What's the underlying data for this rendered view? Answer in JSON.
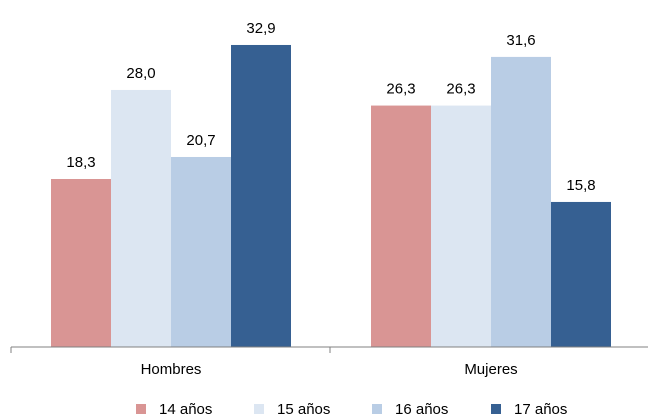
{
  "chart_data": {
    "type": "bar",
    "categories": [
      "Hombres",
      "Mujeres"
    ],
    "series": [
      {
        "name": "14 años",
        "values": [
          18.3,
          26.3
        ],
        "labels": [
          "18,3",
          "26,3"
        ],
        "color": "#d99594"
      },
      {
        "name": "15 años",
        "values": [
          28.0,
          26.3
        ],
        "labels": [
          "28,0",
          "26,3"
        ],
        "color": "#dce6f2"
      },
      {
        "name": "16 años",
        "values": [
          20.7,
          31.6
        ],
        "labels": [
          "20,7",
          "31,6"
        ],
        "color": "#b9cde5"
      },
      {
        "name": "17 años",
        "values": [
          32.9,
          15.8
        ],
        "labels": [
          "32,9",
          "15,8"
        ],
        "color": "#366092"
      }
    ],
    "title": "",
    "xlabel": "",
    "ylabel": "",
    "ylim": [
      0,
      35
    ],
    "grid": false,
    "legend_position": "bottom"
  }
}
